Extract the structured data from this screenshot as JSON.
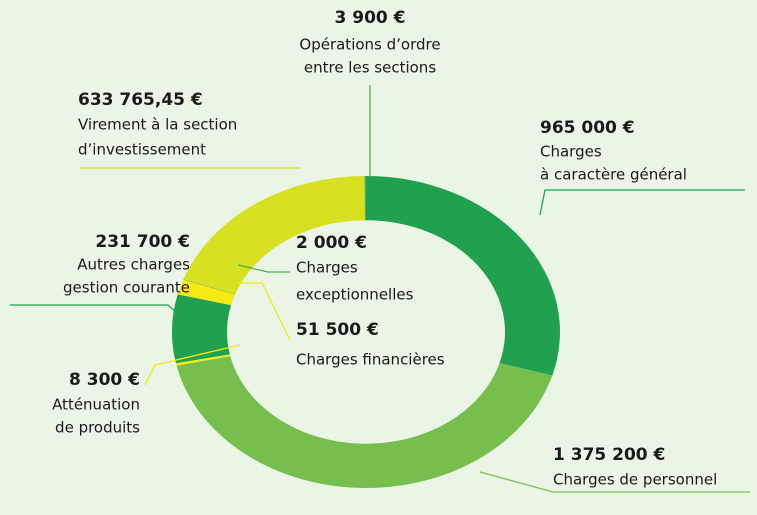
{
  "chart_data": {
    "type": "donut",
    "categories": [
      [
        "Charges",
        "à caractère général"
      ],
      [
        "Charges de personnel"
      ],
      [
        "Atténuation",
        "de produits"
      ],
      [
        "Autres charges",
        "gestion courante"
      ],
      [
        "Charges financières"
      ],
      [
        "Charges",
        "exceptionnelles"
      ],
      [
        "Virement à la section",
        "d’investissement"
      ],
      [
        "Opérations d’ordre",
        "entre les sections"
      ]
    ],
    "values": [
      965000,
      1375200,
      8300,
      231700,
      51500,
      2000,
      633765.45,
      3900
    ],
    "value_labels": [
      "965 000 €",
      "1 375 200 €",
      "8 300 €",
      "231 700 €",
      "51 500 €",
      "2 000 €",
      "633 765,45 €",
      "3 900 €"
    ],
    "colors": [
      "#21a150",
      "#76bf4f",
      "#f5ea14",
      "#21a150",
      "#f5ea14",
      "#4caf50",
      "#d7e021",
      "#4caf50"
    ]
  }
}
